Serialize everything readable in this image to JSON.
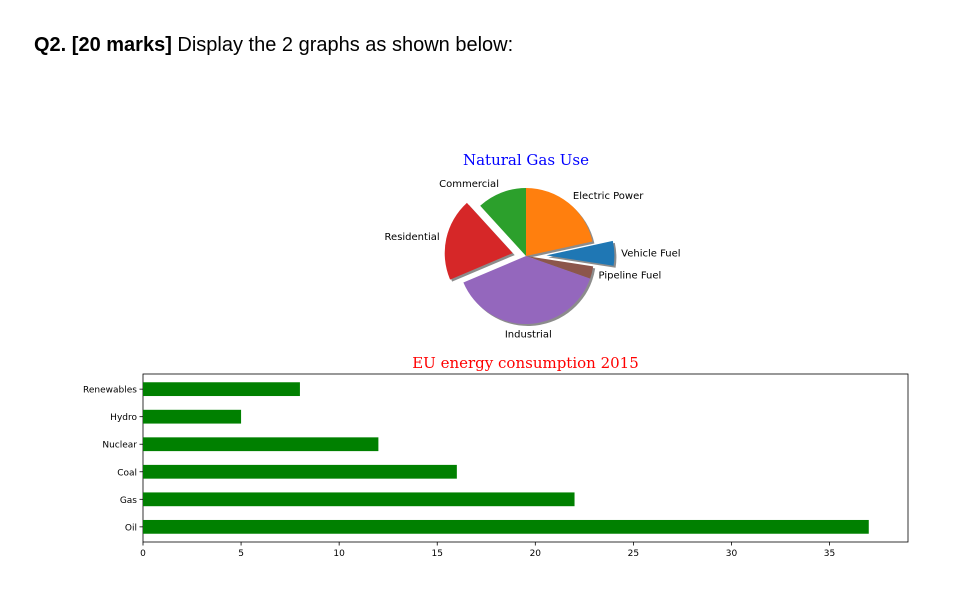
{
  "question": {
    "label": "Q2. [20 marks]",
    "text": "Display the 2 graphs as shown below:"
  },
  "chart_data": [
    {
      "type": "pie",
      "title": "Natural Gas Use",
      "title_color": "#0000ff",
      "labels": [
        "Electric Power",
        "Vehicle Fuel",
        "Pipeline Fuel",
        "Industrial",
        "Residential",
        "Commercial"
      ],
      "values": [
        22,
        6,
        3,
        39,
        20,
        12
      ],
      "colors": [
        "#ff7f0e",
        "#1f77b4",
        "#8c564b",
        "#9467bd",
        "#d62728",
        "#2ca02c"
      ],
      "explode": [
        0,
        0.3,
        0,
        0,
        0.2,
        0
      ],
      "shadow": true,
      "start_angle": 90,
      "direction": "clockwise"
    },
    {
      "type": "bar",
      "orientation": "horizontal",
      "title": "EU energy consumption 2015",
      "title_color": "#ff0000",
      "categories": [
        "Oil",
        "Gas",
        "Coal",
        "Nuclear",
        "Hydro",
        "Renewables"
      ],
      "values": [
        37,
        22,
        16,
        12,
        5,
        8
      ],
      "bar_color": "#008000",
      "xlim": [
        0,
        39
      ],
      "xticks": [
        0,
        5,
        10,
        15,
        20,
        25,
        30,
        35
      ],
      "grid": false
    }
  ]
}
